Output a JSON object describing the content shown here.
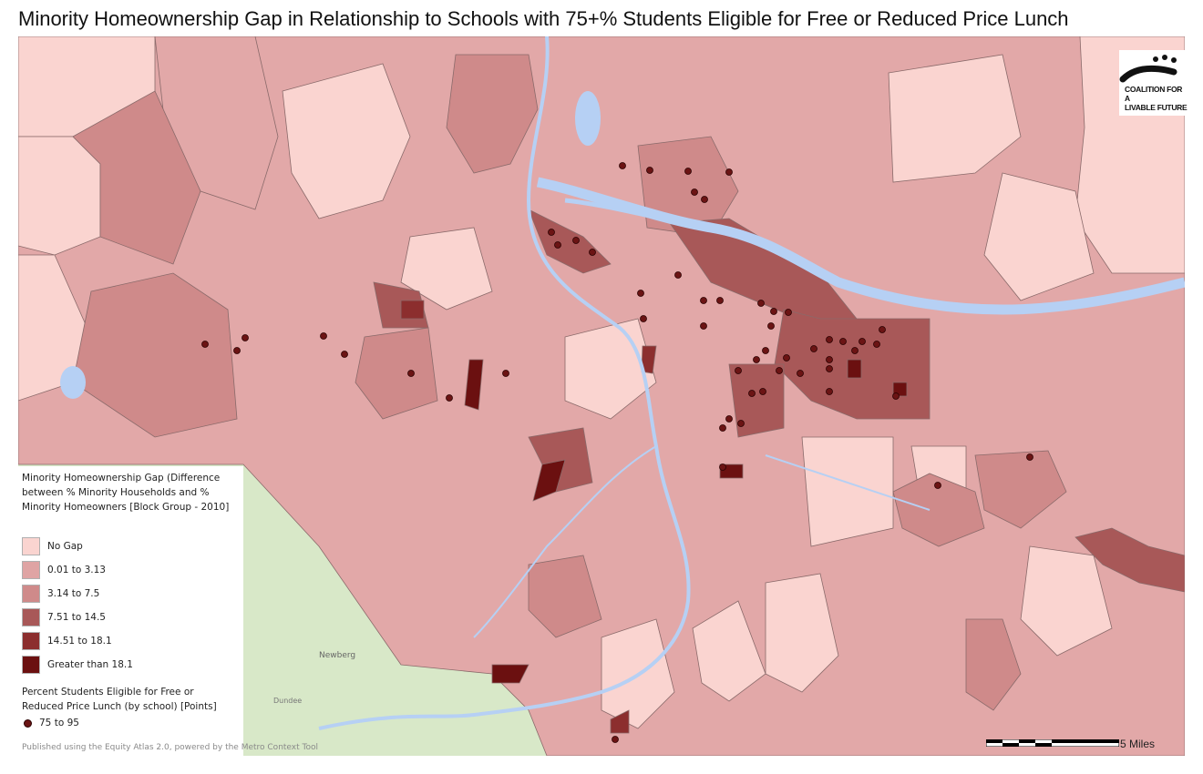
{
  "title": "Minority Homeownership Gap in Relationship to Schools with 75+% Students Eligible for Free or Reduced Price Lunch",
  "legend": {
    "title": "Minority Homeownership Gap (Difference between % Minority Households and % Minority Homeowners [Block Group - 2010]",
    "classes": [
      {
        "label": "No Gap",
        "color": "#fad4d0"
      },
      {
        "label": "0.01 to 3.13",
        "color": "#dfa4a4"
      },
      {
        "label": "3.14 to 7.5",
        "color": "#cf8a8a"
      },
      {
        "label": "7.51 to 14.5",
        "color": "#a85858"
      },
      {
        "label": "14.51 to 18.1",
        "color": "#8c2e2e"
      },
      {
        "label": "Greater than 18.1",
        "color": "#6b1010"
      }
    ],
    "points_title": "Percent Students Eligible for Free or Reduced Price Lunch (by school) [Points]",
    "points_label": "75 to 95"
  },
  "credit": "Published using the Equity Atlas 2.0, powered by the Metro Context Tool",
  "scale_label": "5 Miles",
  "logo": {
    "line1": "COALITION FOR A",
    "line2": "LIVABLE FUTURE"
  },
  "basemap_labels": {
    "town1": "Newberg",
    "town2": "Dundee"
  },
  "colors": {
    "water": "#b6d0f4",
    "basemap": "#d8e8c8",
    "school_point": "#6b1414",
    "boundary": "#8a6a6a"
  }
}
